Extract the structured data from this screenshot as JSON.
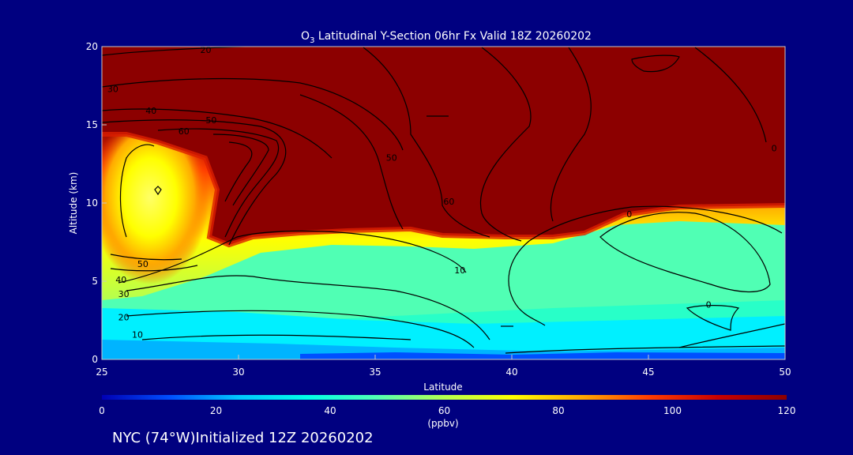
{
  "chart_data": {
    "type": "heatmap",
    "title": "O3 Latitudinal Y-Section 06hr  Fx Valid 18Z 20260202",
    "title_species": {
      "base": "O",
      "sub": "3"
    },
    "title_rest": " Latitudinal Y-Section 06hr  Fx Valid 18Z 20260202",
    "xlabel": "Latitude",
    "ylabel": "Altitude (km)",
    "xlim": [
      25,
      50
    ],
    "ylim": [
      0,
      20
    ],
    "x_ticks": [
      "25",
      "30",
      "35",
      "40",
      "45",
      "50"
    ],
    "y_ticks": [
      "0",
      "5",
      "10",
      "15",
      "20"
    ],
    "colorbar": {
      "label": "(ppbv)",
      "range": [
        0,
        120
      ],
      "ticks": [
        "0",
        "20",
        "40",
        "60",
        "80",
        "100",
        "120"
      ],
      "colors": [
        "#0000b4",
        "#0050ff",
        "#00c8ff",
        "#00ffe6",
        "#50ffb4",
        "#b4ff50",
        "#ffff00",
        "#ffaa00",
        "#ff3c00",
        "#c80000",
        "#8c0000"
      ]
    },
    "contour_labels": [
      {
        "text": "20",
        "lat": 28.8,
        "alt": 19.8
      },
      {
        "text": "30",
        "lat": 25.4,
        "alt": 17.3
      },
      {
        "text": "40",
        "lat": 26.8,
        "alt": 15.9
      },
      {
        "text": "50",
        "lat": 29.0,
        "alt": 15.3
      },
      {
        "text": "60",
        "lat": 28.0,
        "alt": 14.6
      },
      {
        "text": "50",
        "lat": 35.6,
        "alt": 12.9
      },
      {
        "text": "60",
        "lat": 37.7,
        "alt": 10.1
      },
      {
        "text": "0",
        "lat": 49.6,
        "alt": 13.5
      },
      {
        "text": "0",
        "lat": 44.3,
        "alt": 9.3
      },
      {
        "text": "10",
        "lat": 38.1,
        "alt": 5.7
      },
      {
        "text": "0",
        "lat": 47.2,
        "alt": 3.5
      },
      {
        "text": "50",
        "lat": 26.5,
        "alt": 6.1
      },
      {
        "text": "40",
        "lat": 25.7,
        "alt": 5.1
      },
      {
        "text": "30",
        "lat": 25.8,
        "alt": 4.2
      },
      {
        "text": "20",
        "lat": 25.8,
        "alt": 2.7
      },
      {
        "text": "10",
        "lat": 26.3,
        "alt": 1.6
      }
    ]
  },
  "footer": "NYC (74°W)Initialized 12Z 20260202"
}
